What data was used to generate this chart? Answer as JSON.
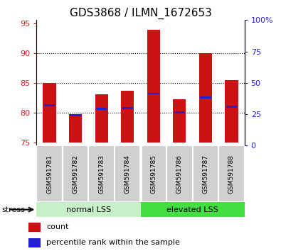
{
  "title": "GDS3868 / ILMN_1672653",
  "samples": [
    "GSM591781",
    "GSM591782",
    "GSM591783",
    "GSM591784",
    "GSM591785",
    "GSM591786",
    "GSM591787",
    "GSM591788"
  ],
  "count_values": [
    85.0,
    79.8,
    83.1,
    83.7,
    93.9,
    82.3,
    90.0,
    85.4
  ],
  "percentile_values": [
    81.2,
    79.6,
    80.7,
    80.8,
    83.2,
    80.0,
    82.5,
    81.0
  ],
  "bar_bottom": 75.0,
  "ylim_left": [
    74.5,
    95.5
  ],
  "ylim_right": [
    0,
    100
  ],
  "yticks_left": [
    75,
    80,
    85,
    90,
    95
  ],
  "yticks_right": [
    0,
    25,
    50,
    75,
    100
  ],
  "ytick_labels_right": [
    "0",
    "25",
    "50",
    "75",
    "100%"
  ],
  "grid_lines": [
    80,
    85,
    90
  ],
  "count_color": "#cc1111",
  "percentile_color": "#2222cc",
  "bar_width": 0.5,
  "groups": [
    {
      "label": "normal LSS",
      "start": 0,
      "end": 4,
      "color": "#c8f0c8"
    },
    {
      "label": "elevated LSS",
      "start": 4,
      "end": 8,
      "color": "#44dd44"
    }
  ],
  "stress_label": "stress",
  "legend_count_label": "count",
  "legend_percentile_label": "percentile rank within the sample",
  "title_fontsize": 11,
  "tick_label_fontsize": 8,
  "axis_label_color_left": "#cc2222",
  "axis_label_color_right": "#2222cc",
  "sample_bg_color": "#d0d0d0",
  "sample_border_color": "#ffffff"
}
